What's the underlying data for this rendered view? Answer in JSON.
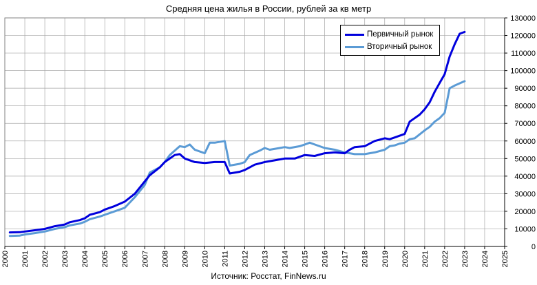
{
  "chart_data": {
    "type": "line",
    "title": "Средняя цена жилья в России, рублей за кв метр",
    "source": "Источник: Росстат, FinNews.ru",
    "xlim": [
      2000,
      2025
    ],
    "ylim": [
      0,
      130000
    ],
    "x_ticks": [
      "2000",
      "2001",
      "2002",
      "2003",
      "2004",
      "2005",
      "2006",
      "2007",
      "2008",
      "2009",
      "2010",
      "2011",
      "2012",
      "2013",
      "2014",
      "2015",
      "2016",
      "2017",
      "2018",
      "2019",
      "2020",
      "2021",
      "2022",
      "2023",
      "2024",
      "2025"
    ],
    "y_ticks": [
      "0",
      "10000",
      "20000",
      "30000",
      "40000",
      "50000",
      "60000",
      "70000",
      "80000",
      "90000",
      "100000",
      "110000",
      "120000",
      "130000"
    ],
    "grid": true,
    "legend_position": "top-right",
    "series": [
      {
        "name": "Первичный рынок",
        "color": "#0000dd",
        "points": [
          [
            2000.25,
            8000
          ],
          [
            2000.75,
            8100
          ],
          [
            2001.0,
            8500
          ],
          [
            2001.5,
            9200
          ],
          [
            2002.0,
            10000
          ],
          [
            2002.5,
            11500
          ],
          [
            2003.0,
            12500
          ],
          [
            2003.25,
            13800
          ],
          [
            2003.75,
            15000
          ],
          [
            2004.0,
            16000
          ],
          [
            2004.25,
            18000
          ],
          [
            2004.75,
            19500
          ],
          [
            2005.0,
            21000
          ],
          [
            2005.5,
            23000
          ],
          [
            2006.0,
            25500
          ],
          [
            2006.5,
            30000
          ],
          [
            2007.0,
            37000
          ],
          [
            2007.25,
            40500
          ],
          [
            2007.75,
            45000
          ],
          [
            2008.0,
            48000
          ],
          [
            2008.5,
            52000
          ],
          [
            2008.75,
            52500
          ],
          [
            2009.0,
            50000
          ],
          [
            2009.5,
            48000
          ],
          [
            2010.0,
            47500
          ],
          [
            2010.5,
            48000
          ],
          [
            2011.0,
            48000
          ],
          [
            2011.25,
            41500
          ],
          [
            2011.75,
            42500
          ],
          [
            2012.0,
            43500
          ],
          [
            2012.5,
            46500
          ],
          [
            2013.0,
            48000
          ],
          [
            2013.5,
            49000
          ],
          [
            2014.0,
            50000
          ],
          [
            2014.5,
            50000
          ],
          [
            2015.0,
            52000
          ],
          [
            2015.5,
            51500
          ],
          [
            2016.0,
            53000
          ],
          [
            2016.5,
            53500
          ],
          [
            2017.0,
            53000
          ],
          [
            2017.25,
            55000
          ],
          [
            2017.5,
            56500
          ],
          [
            2018.0,
            57000
          ],
          [
            2018.5,
            60000
          ],
          [
            2019.0,
            61500
          ],
          [
            2019.25,
            61000
          ],
          [
            2019.5,
            62000
          ],
          [
            2020.0,
            64000
          ],
          [
            2020.25,
            71000
          ],
          [
            2020.75,
            75000
          ],
          [
            2021.0,
            78000
          ],
          [
            2021.25,
            82000
          ],
          [
            2021.5,
            88000
          ],
          [
            2021.75,
            93000
          ],
          [
            2022.0,
            98000
          ],
          [
            2022.25,
            108000
          ],
          [
            2022.5,
            115000
          ],
          [
            2022.75,
            121000
          ],
          [
            2023.0,
            122000
          ]
        ]
      },
      {
        "name": "Вторичный рынок",
        "color": "#5b9bd5",
        "points": [
          [
            2000.25,
            6000
          ],
          [
            2000.75,
            6200
          ],
          [
            2001.0,
            6800
          ],
          [
            2001.5,
            7600
          ],
          [
            2002.0,
            8500
          ],
          [
            2002.5,
            10000
          ],
          [
            2003.0,
            11000
          ],
          [
            2003.25,
            12000
          ],
          [
            2003.75,
            13000
          ],
          [
            2004.0,
            14000
          ],
          [
            2004.25,
            15500
          ],
          [
            2004.75,
            17000
          ],
          [
            2005.0,
            18000
          ],
          [
            2005.5,
            20000
          ],
          [
            2006.0,
            22000
          ],
          [
            2006.5,
            28000
          ],
          [
            2007.0,
            35000
          ],
          [
            2007.25,
            42000
          ],
          [
            2007.75,
            45000
          ],
          [
            2008.0,
            48000
          ],
          [
            2008.25,
            52000
          ],
          [
            2008.75,
            57000
          ],
          [
            2009.0,
            56500
          ],
          [
            2009.25,
            58000
          ],
          [
            2009.5,
            55000
          ],
          [
            2010.0,
            53000
          ],
          [
            2010.25,
            59000
          ],
          [
            2010.5,
            59000
          ],
          [
            2011.0,
            60000
          ],
          [
            2011.25,
            46000
          ],
          [
            2011.75,
            47000
          ],
          [
            2012.0,
            48000
          ],
          [
            2012.25,
            52000
          ],
          [
            2012.75,
            54500
          ],
          [
            2013.0,
            56000
          ],
          [
            2013.25,
            55000
          ],
          [
            2013.75,
            56000
          ],
          [
            2014.0,
            56500
          ],
          [
            2014.25,
            56000
          ],
          [
            2014.75,
            57000
          ],
          [
            2015.0,
            58000
          ],
          [
            2015.25,
            59000
          ],
          [
            2015.5,
            58000
          ],
          [
            2016.0,
            56000
          ],
          [
            2016.5,
            55000
          ],
          [
            2017.0,
            53500
          ],
          [
            2017.5,
            52500
          ],
          [
            2018.0,
            52500
          ],
          [
            2018.5,
            53500
          ],
          [
            2019.0,
            55000
          ],
          [
            2019.25,
            57000
          ],
          [
            2019.5,
            57500
          ],
          [
            2019.75,
            58500
          ],
          [
            2020.0,
            59000
          ],
          [
            2020.25,
            61000
          ],
          [
            2020.5,
            61500
          ],
          [
            2021.0,
            66000
          ],
          [
            2021.25,
            68000
          ],
          [
            2021.5,
            71000
          ],
          [
            2021.75,
            73000
          ],
          [
            2022.0,
            76000
          ],
          [
            2022.25,
            90000
          ],
          [
            2022.5,
            91500
          ],
          [
            2023.0,
            94000
          ]
        ]
      }
    ]
  }
}
